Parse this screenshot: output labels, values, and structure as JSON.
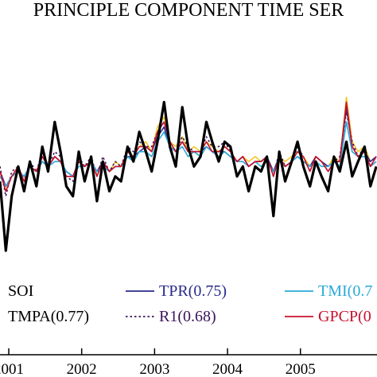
{
  "chart_data": {
    "type": "line",
    "title": "PRINCIPLE COMPONENT TIME SER",
    "xlabel": "",
    "ylabel": "",
    "x_ticks": [
      "2001",
      "2002",
      "2003",
      "2004",
      "2005"
    ],
    "xlim": [
      2000.88,
      2006.05
    ],
    "ylim": [
      -2.0,
      2.5
    ],
    "grid": false,
    "legend_placement": "bottom",
    "series": [
      {
        "name": "SOI",
        "color": "#000000",
        "style": "solid-thick",
        "x": [
          2000.88,
          2000.96,
          2001.04,
          2001.13,
          2001.21,
          2001.29,
          2001.38,
          2001.46,
          2001.54,
          2001.63,
          2001.71,
          2001.79,
          2001.88,
          2001.96,
          2002.04,
          2002.13,
          2002.21,
          2002.29,
          2002.38,
          2002.46,
          2002.54,
          2002.63,
          2002.71,
          2002.79,
          2002.88,
          2002.96,
          2003.04,
          2003.13,
          2003.21,
          2003.29,
          2003.38,
          2003.46,
          2003.54,
          2003.63,
          2003.71,
          2003.79,
          2003.88,
          2003.96,
          2004.04,
          2004.13,
          2004.21,
          2004.29,
          2004.38,
          2004.46,
          2004.54,
          2004.63,
          2004.71,
          2004.79,
          2004.88,
          2004.96,
          2005.04,
          2005.13,
          2005.21,
          2005.29,
          2005.38,
          2005.46,
          2005.54,
          2005.63,
          2005.71,
          2005.79,
          2005.88,
          2005.96,
          2006.04
        ],
        "y": [
          -0.2,
          -1.6,
          -0.5,
          0.1,
          -0.4,
          0.2,
          -0.3,
          0.5,
          0.0,
          1.0,
          0.4,
          -0.3,
          -0.5,
          0.4,
          -0.2,
          0.3,
          -0.6,
          0.2,
          -0.4,
          -0.1,
          -0.2,
          0.5,
          0.2,
          0.8,
          0.4,
          0.0,
          0.6,
          1.4,
          0.5,
          0.1,
          1.3,
          0.5,
          0.1,
          0.3,
          1.0,
          0.6,
          0.2,
          0.6,
          0.5,
          -0.1,
          0.1,
          -0.4,
          0.1,
          0.0,
          0.3,
          -0.9,
          0.4,
          -0.2,
          0.2,
          0.6,
          0.1,
          -0.3,
          0.2,
          -0.1,
          -0.4,
          0.3,
          0.0,
          0.6,
          -0.1,
          0.2,
          0.5,
          -0.3,
          0.1
        ]
      },
      {
        "name": "TMPA(0.77)",
        "color": "#f0c828",
        "style": "solid",
        "x": [
          2000.88,
          2000.96,
          2001.04,
          2001.13,
          2001.21,
          2001.29,
          2001.38,
          2001.46,
          2001.54,
          2001.63,
          2001.71,
          2001.79,
          2001.88,
          2001.96,
          2002.04,
          2002.13,
          2002.21,
          2002.29,
          2002.38,
          2002.46,
          2002.54,
          2002.63,
          2002.71,
          2002.79,
          2002.88,
          2002.96,
          2003.04,
          2003.13,
          2003.21,
          2003.29,
          2003.38,
          2003.46,
          2003.54,
          2003.63,
          2003.71,
          2003.79,
          2003.88,
          2003.96,
          2004.04,
          2004.13,
          2004.21,
          2004.29,
          2004.38,
          2004.46,
          2004.54,
          2004.63,
          2004.71,
          2004.79,
          2004.88,
          2004.96,
          2005.04,
          2005.13,
          2005.21,
          2005.29,
          2005.38,
          2005.46,
          2005.54,
          2005.63,
          2005.71,
          2005.79,
          2005.88,
          2005.96,
          2006.04
        ],
        "y": [
          0.0,
          -0.4,
          -0.1,
          0.0,
          -0.2,
          0.1,
          0.0,
          0.3,
          0.1,
          0.3,
          0.2,
          0.0,
          -0.1,
          0.2,
          0.1,
          0.2,
          -0.1,
          0.2,
          0.0,
          0.2,
          0.1,
          0.4,
          0.3,
          0.5,
          0.6,
          0.4,
          0.9,
          1.1,
          0.6,
          0.5,
          0.7,
          0.4,
          0.5,
          0.4,
          0.6,
          0.5,
          0.4,
          0.5,
          0.4,
          0.2,
          0.3,
          0.2,
          0.3,
          0.2,
          0.3,
          0.0,
          0.3,
          0.2,
          0.3,
          0.4,
          0.3,
          0.1,
          0.3,
          0.2,
          0.1,
          0.3,
          0.2,
          1.5,
          0.6,
          0.4,
          0.5,
          0.2,
          0.3
        ]
      },
      {
        "name": "TPR(0.75)",
        "color": "#2a2a8c",
        "style": "solid",
        "x": [
          2000.88,
          2000.96,
          2001.04,
          2001.13,
          2001.21,
          2001.29,
          2001.38,
          2001.46,
          2001.54,
          2001.63,
          2001.71,
          2001.79,
          2001.88,
          2001.96,
          2002.04,
          2002.13,
          2002.21,
          2002.29,
          2002.38,
          2002.46,
          2002.54,
          2002.63,
          2002.71,
          2002.79,
          2002.88,
          2002.96,
          2003.04,
          2003.13,
          2003.21,
          2003.29,
          2003.38,
          2003.46,
          2003.54,
          2003.63,
          2003.71,
          2003.79,
          2003.88,
          2003.96,
          2004.04,
          2004.13,
          2004.21,
          2004.29,
          2004.38,
          2004.46,
          2004.54,
          2004.63,
          2004.71,
          2004.79,
          2004.88,
          2004.96,
          2005.04,
          2005.13,
          2005.21,
          2005.29,
          2005.38,
          2005.46,
          2005.54,
          2005.63,
          2005.71,
          2005.79,
          2005.88,
          2005.96,
          2006.04
        ],
        "y": [
          0.0,
          -0.3,
          -0.1,
          0.0,
          -0.1,
          0.1,
          0.0,
          0.2,
          0.1,
          0.3,
          0.2,
          0.0,
          -0.1,
          0.2,
          0.1,
          0.2,
          0.0,
          0.2,
          0.0,
          0.1,
          0.1,
          0.3,
          0.3,
          0.4,
          0.5,
          0.4,
          0.7,
          0.9,
          0.5,
          0.4,
          0.6,
          0.4,
          0.4,
          0.4,
          0.5,
          0.4,
          0.4,
          0.4,
          0.3,
          0.2,
          0.3,
          0.1,
          0.2,
          0.2,
          0.3,
          0.0,
          0.3,
          0.1,
          0.2,
          0.3,
          0.2,
          0.1,
          0.3,
          0.2,
          0.1,
          0.2,
          0.2,
          1.3,
          0.5,
          0.3,
          0.4,
          0.2,
          0.3
        ]
      },
      {
        "name": "R1(0.68)",
        "color": "#3a1458",
        "style": "dotted",
        "x": [
          2000.88,
          2000.96,
          2001.04,
          2001.13,
          2001.21,
          2001.29,
          2001.38,
          2001.46,
          2001.54,
          2001.63,
          2001.71,
          2001.79,
          2001.88,
          2001.96,
          2002.04,
          2002.13,
          2002.21,
          2002.29,
          2002.38,
          2002.46,
          2002.54,
          2002.63,
          2002.71,
          2002.79,
          2002.88,
          2002.96,
          2003.04,
          2003.13,
          2003.21,
          2003.29,
          2003.38,
          2003.46,
          2003.54,
          2003.63,
          2003.71,
          2003.79,
          2003.88,
          2003.96,
          2004.04,
          2004.13,
          2004.21,
          2004.29,
          2004.38,
          2004.46,
          2004.54,
          2004.63,
          2004.71,
          2004.79,
          2004.88,
          2004.96,
          2005.04,
          2005.13,
          2005.21,
          2005.29,
          2005.38,
          2005.46,
          2005.54,
          2005.63,
          2005.71,
          2005.79,
          2005.88,
          2005.96,
          2006.04
        ],
        "y": [
          0.1,
          -0.5,
          0.0,
          0.1,
          -0.2,
          0.2,
          0.0,
          0.4,
          0.1,
          0.4,
          0.3,
          -0.1,
          -0.2,
          0.3,
          0.1,
          0.3,
          -0.1,
          0.3,
          0.0,
          0.2,
          0.1,
          0.5,
          0.4,
          0.6,
          0.5,
          0.5,
          0.8,
          1.0,
          0.6,
          0.4,
          0.7,
          0.5,
          0.4,
          0.4,
          0.7,
          0.5,
          0.5,
          0.6,
          0.4,
          0.2,
          0.3,
          0.1,
          0.2,
          0.2,
          0.3,
          -0.1,
          0.4,
          0.1,
          0.2,
          0.5,
          0.3,
          0.0,
          0.3,
          0.2,
          0.0,
          0.2,
          0.3,
          1.2,
          0.6,
          0.3,
          0.5,
          0.1,
          0.3
        ]
      },
      {
        "name": "TMI(0.7",
        "color": "#2aa8d8",
        "style": "solid",
        "x": [
          2000.88,
          2000.96,
          2001.04,
          2001.13,
          2001.21,
          2001.29,
          2001.38,
          2001.46,
          2001.54,
          2001.63,
          2001.71,
          2001.79,
          2001.88,
          2001.96,
          2002.04,
          2002.13,
          2002.21,
          2002.29,
          2002.38,
          2002.46,
          2002.54,
          2002.63,
          2002.71,
          2002.79,
          2002.88,
          2002.96,
          2003.04,
          2003.13,
          2003.21,
          2003.29,
          2003.38,
          2003.46,
          2003.54,
          2003.63,
          2003.71,
          2003.79,
          2003.88,
          2003.96,
          2004.04,
          2004.13,
          2004.21,
          2004.29,
          2004.38,
          2004.46,
          2004.54,
          2004.63,
          2004.71,
          2004.79,
          2004.88,
          2004.96,
          2005.04,
          2005.13,
          2005.21,
          2005.29,
          2005.38,
          2005.46,
          2005.54,
          2005.63,
          2005.71,
          2005.79,
          2005.88,
          2005.96,
          2006.04
        ],
        "y": [
          -0.1,
          -0.3,
          -0.1,
          0.0,
          -0.1,
          0.1,
          0.0,
          0.2,
          0.1,
          0.2,
          0.2,
          0.0,
          -0.1,
          0.1,
          0.1,
          0.2,
          0.0,
          0.1,
          0.0,
          0.1,
          0.1,
          0.3,
          0.2,
          0.4,
          0.4,
          0.3,
          0.6,
          0.8,
          0.5,
          0.4,
          0.5,
          0.3,
          0.4,
          0.3,
          0.5,
          0.4,
          0.3,
          0.4,
          0.3,
          0.2,
          0.2,
          0.1,
          0.2,
          0.1,
          0.2,
          0.0,
          0.2,
          0.1,
          0.2,
          0.3,
          0.2,
          0.1,
          0.2,
          0.1,
          0.1,
          0.2,
          0.1,
          1.0,
          0.4,
          0.3,
          0.3,
          0.1,
          0.2
        ]
      },
      {
        "name": "GPCP(0",
        "color": "#c8102e",
        "style": "solid",
        "x": [
          2000.88,
          2000.96,
          2001.04,
          2001.13,
          2001.21,
          2001.29,
          2001.38,
          2001.46,
          2001.54,
          2001.63,
          2001.71,
          2001.79,
          2001.88,
          2001.96,
          2002.04,
          2002.13,
          2002.21,
          2002.29,
          2002.38,
          2002.46,
          2002.54,
          2002.63,
          2002.71,
          2002.79,
          2002.88,
          2002.96,
          2003.04,
          2003.13,
          2003.21,
          2003.29,
          2003.38,
          2003.46,
          2003.54,
          2003.63,
          2003.71,
          2003.79,
          2003.88,
          2003.96,
          2004.04,
          2004.13,
          2004.21,
          2004.29,
          2004.38,
          2004.46,
          2004.54,
          2004.63,
          2004.71,
          2004.79,
          2004.88,
          2004.96,
          2005.04,
          2005.13,
          2005.21,
          2005.29,
          2005.38,
          2005.46,
          2005.54,
          2005.63,
          2005.71,
          2005.79,
          2005.88,
          2005.96,
          2006.04
        ],
        "y": [
          0.0,
          -0.4,
          -0.1,
          0.1,
          -0.2,
          0.1,
          0.0,
          0.3,
          0.1,
          0.3,
          0.2,
          -0.1,
          -0.1,
          0.2,
          0.1,
          0.2,
          -0.1,
          0.2,
          0.0,
          0.1,
          0.1,
          0.4,
          0.3,
          0.5,
          0.5,
          0.4,
          0.8,
          1.0,
          0.6,
          0.4,
          0.6,
          0.4,
          0.4,
          0.4,
          0.6,
          0.4,
          0.4,
          0.5,
          0.4,
          0.2,
          0.3,
          0.1,
          0.2,
          0.2,
          0.3,
          -0.1,
          0.3,
          0.1,
          0.2,
          0.4,
          0.3,
          0.0,
          0.3,
          0.2,
          0.0,
          0.2,
          0.2,
          1.4,
          0.5,
          0.3,
          0.4,
          0.1,
          0.3
        ]
      }
    ]
  }
}
